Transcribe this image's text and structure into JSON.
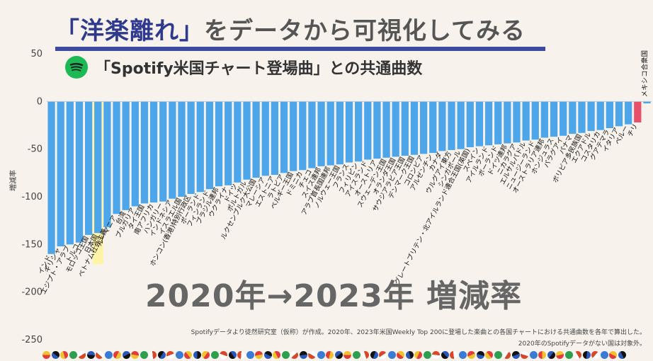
{
  "header": {
    "title_quoted": "「洋楽離れ」",
    "title_rest": "をデータから可視化してみる",
    "subtitle": "「Spotify米国チャート登場曲」との共通曲数",
    "spotify_icon": "spotify-logo-icon"
  },
  "overlay_text": "2020年→2023年 増減率",
  "notes": {
    "line1": "Spotifyデータより徒然研究室（仮称）が作成。2020年、2023年米国Weekly Top 200に登場した楽曲との各国チャートにおける共通曲数を各年で算出した。",
    "line2": "2020年のSpotifyデータがない国は対象外。"
  },
  "colors": {
    "bar": "#4ea6ea",
    "highlight": "#fff3a8",
    "chile_bar": "#e8506a",
    "title_accent": "#2f3a8f",
    "rule": "#3c4aa0"
  },
  "chart_data": {
    "type": "bar",
    "title": "「Spotify米国チャート登場曲」との共通曲数",
    "xlabel": "",
    "ylabel": "増減率",
    "ylim": [
      -250,
      50
    ],
    "yticks": [
      50,
      0,
      -50,
      -100,
      -150,
      -200,
      -250
    ],
    "highlight_category": "日本国",
    "categories": [
      "インド",
      "ギリシャ",
      "エジプト・アラブ",
      "トルコ",
      "モロッコ王国",
      "日本国",
      "ベトナム社会主義",
      "ルーマニア",
      "台湾",
      "ブルガリア",
      "タイ王国",
      "南アフリカ",
      "ハンガリー",
      "インドネシア",
      "イスラエル国",
      "ホンコン(香港)特別行政区",
      "ポーランド",
      "フィンランド",
      "ブラジル連邦",
      "ウクライナ",
      "ドイツ",
      "ポルトガル",
      "ルクセンブルク大公国",
      "マレーシア",
      "エストニア",
      "ラトビア",
      "ベルギー王国",
      "ドミニカ",
      "チェコ",
      "スイス連邦",
      "アラブ首長国連邦",
      "ノルウェー王国",
      "フランス",
      "フィリピン",
      "アイスランド",
      "オーストリア",
      "スウェーデン王国",
      "オランダ王国",
      "サウジアラビア王国",
      "デンマーク王国",
      "コロンビア",
      "アルゼンチン",
      "カナダ",
      "ウルグアイ東方",
      "シンガポール",
      "グレートブリテン・北アイルランド連合王国(英国)",
      "スペイン",
      "アイルランド",
      "ボーランド",
      "ドイツ連邦",
      "ニカラグア",
      "エルサルバドル",
      "ニュージーランド",
      "オーストラリア連邦",
      "ホンジュラス",
      "パラグアイ",
      "パナマ",
      "ボリビア多民族国",
      "エクアドル",
      "コスタリカ",
      "グアテマラ",
      "イタリア",
      "ペルー",
      "チリ",
      "メキシコ合衆国"
    ],
    "values": [
      -160,
      -152,
      -150,
      -148,
      -140,
      -138,
      -132,
      -118,
      -114,
      -110,
      -107,
      -106,
      -105,
      -102,
      -100,
      -97,
      -95,
      -92,
      -89,
      -88,
      -85,
      -82,
      -80,
      -78,
      -77,
      -75,
      -73,
      -72,
      -70,
      -68,
      -67,
      -66,
      -64,
      -63,
      -61,
      -60,
      -59,
      -58,
      -57,
      -56,
      -55,
      -54,
      -52,
      -51,
      -50,
      -48,
      -47,
      -46,
      -45,
      -44,
      -43,
      -41,
      -40,
      -38,
      -37,
      -36,
      -34,
      -33,
      -31,
      -30,
      -28,
      -26,
      -24,
      -22,
      -2
    ]
  }
}
